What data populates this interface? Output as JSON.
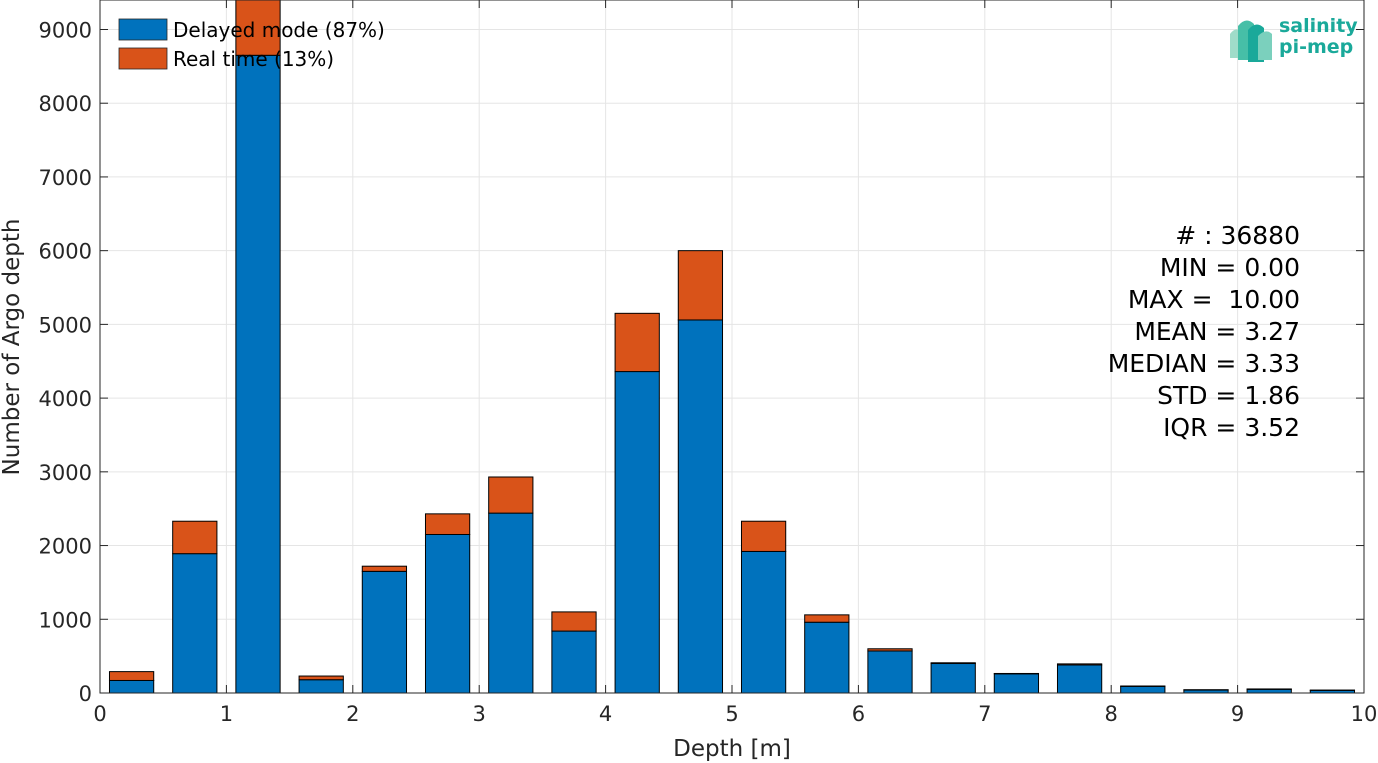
{
  "chart_data": {
    "type": "bar",
    "stacked": true,
    "xlabel": "Depth [m]",
    "ylabel": "Number of Argo depth",
    "xlim": [
      0,
      10
    ],
    "ylim": [
      0,
      9400
    ],
    "xticks": [
      0,
      1,
      2,
      3,
      4,
      5,
      6,
      7,
      8,
      9,
      10
    ],
    "yticks": [
      0,
      1000,
      2000,
      3000,
      4000,
      5000,
      6000,
      7000,
      8000,
      9000
    ],
    "grid": true,
    "legend_position": "top-left",
    "bin_width": 0.5,
    "bar_width_fraction": 0.7,
    "x": [
      0.25,
      0.75,
      1.25,
      1.75,
      2.25,
      2.75,
      3.25,
      3.75,
      4.25,
      4.75,
      5.25,
      5.75,
      6.25,
      6.75,
      7.25,
      7.75,
      8.25,
      8.75,
      9.25,
      9.75
    ],
    "series": [
      {
        "name": "Delayed mode (87%)",
        "color": "#0072BD",
        "values": [
          170,
          1890,
          8650,
          180,
          1650,
          2150,
          2440,
          840,
          4360,
          5060,
          1920,
          960,
          570,
          400,
          260,
          380,
          90,
          40,
          50,
          35
        ]
      },
      {
        "name": "Real time (13%)",
        "color": "#D95319",
        "values": [
          120,
          440,
          770,
          50,
          70,
          280,
          490,
          260,
          790,
          940,
          410,
          100,
          30,
          10,
          5,
          15,
          5,
          5,
          5,
          5
        ]
      }
    ]
  },
  "stats": {
    "count": "# : 36880",
    "min": "MIN = 0.00",
    "max": "MAX =  10.00",
    "mean": "MEAN = 3.27",
    "median": "MEDIAN = 3.33",
    "std": "STD = 1.86",
    "iqr": "IQR = 3.52"
  },
  "logo": {
    "line1": "salinity",
    "line2": "pi-mep"
  },
  "colors": {
    "axis": "#262626",
    "grid": "#e5e5e5",
    "logo": "#1aa99a"
  }
}
